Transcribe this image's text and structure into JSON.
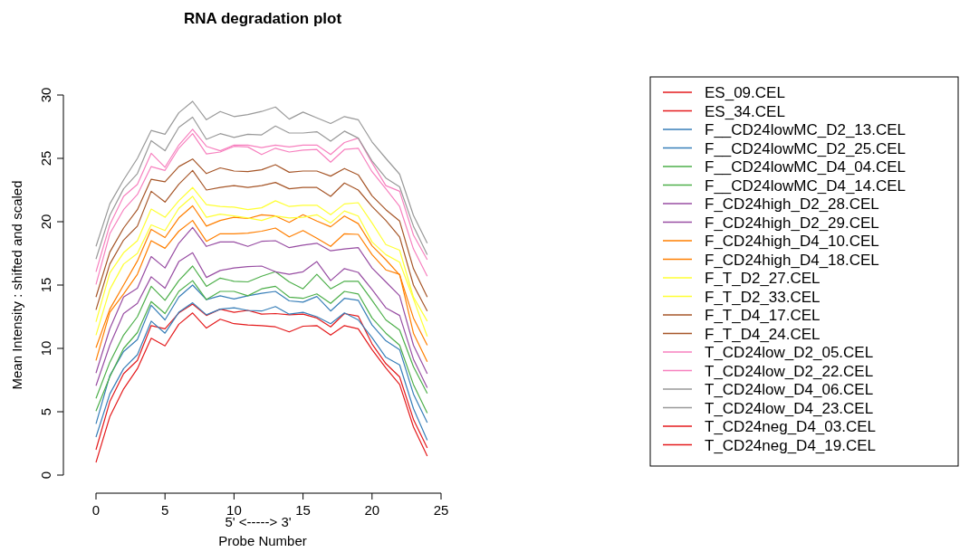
{
  "chart_data": {
    "type": "line",
    "title": "RNA degradation plot",
    "xlabel": "Probe Number",
    "ylabel": "Mean Intensity : shifted and scaled",
    "annotations": [
      "5' <-----> 3'"
    ],
    "x": [
      0,
      1,
      2,
      3,
      4,
      5,
      6,
      7,
      8,
      9,
      10,
      11,
      12,
      13,
      14,
      15,
      16,
      17,
      18,
      19,
      20,
      21,
      22,
      23,
      24
    ],
    "xlim": [
      0,
      25
    ],
    "xticks": [
      0,
      5,
      10,
      15,
      20,
      25
    ],
    "ylim": [
      0,
      30
    ],
    "yticks": [
      0,
      5,
      10,
      15,
      20,
      25,
      30
    ],
    "legend": "right",
    "grid": false,
    "marker": "none",
    "line_style": "solid",
    "series": [
      {
        "name": "ES_09.CEL",
        "color": "#e41a1c",
        "values": [
          1.0,
          4.6,
          6.8,
          8.4,
          10.8,
          10.2,
          11.9,
          12.8,
          11.6,
          12.3,
          11.95,
          11.85,
          11.8,
          11.7,
          11.3,
          11.75,
          11.8,
          11.05,
          11.8,
          11.55,
          9.9,
          8.45,
          7.15,
          3.8,
          1.5
        ]
      },
      {
        "name": "ES_34.CEL",
        "color": "#e41a1c",
        "values": [
          2.0,
          5.8,
          8.0,
          9.05,
          11.8,
          11.55,
          12.8,
          13.5,
          12.6,
          13.1,
          12.85,
          13.0,
          12.7,
          12.75,
          12.65,
          12.7,
          12.4,
          11.7,
          12.75,
          12.55,
          10.35,
          8.8,
          7.75,
          4.4,
          2.15
        ]
      },
      {
        "name": "F__CD24lowMC_D2_13.CEL",
        "color": "#377eb8",
        "values": [
          3.0,
          6.4,
          8.4,
          9.5,
          12.15,
          11.2,
          12.85,
          13.6,
          12.65,
          13.1,
          13.2,
          13.0,
          12.95,
          13.3,
          12.7,
          12.85,
          12.5,
          11.95,
          12.8,
          12.25,
          10.85,
          9.3,
          8.7,
          5.25,
          2.75
        ]
      },
      {
        "name": "F__CD24lowMC_D2_25.CEL",
        "color": "#377eb8",
        "values": [
          4.05,
          7.85,
          9.75,
          10.7,
          13.4,
          12.25,
          14.05,
          15.0,
          13.85,
          14.15,
          13.9,
          14.15,
          14.35,
          14.5,
          13.75,
          13.65,
          14.1,
          12.95,
          13.95,
          13.8,
          11.85,
          10.6,
          9.9,
          6.4,
          4.15
        ]
      },
      {
        "name": "F__CD24lowMC_D4_04.CEL",
        "color": "#4daf4a",
        "values": [
          5.05,
          7.75,
          10.0,
          11.25,
          13.7,
          12.75,
          14.5,
          15.35,
          13.85,
          14.5,
          14.5,
          14.15,
          14.7,
          14.9,
          14.05,
          13.95,
          14.3,
          13.55,
          14.5,
          14.3,
          12.4,
          11.2,
          10.25,
          7.15,
          4.9
        ]
      },
      {
        "name": "F__CD24lowMC_D4_14.CEL",
        "color": "#4daf4a",
        "values": [
          6.05,
          8.9,
          11.05,
          12.5,
          14.9,
          13.8,
          15.35,
          16.5,
          14.9,
          15.55,
          15.3,
          15.25,
          15.7,
          16.05,
          15.25,
          14.7,
          15.85,
          14.7,
          15.3,
          15.3,
          13.8,
          12.25,
          11.45,
          8.55,
          6.45
        ]
      },
      {
        "name": "F_CD24high_D2_28.CEL",
        "color": "#984ea3",
        "values": [
          7.05,
          10.25,
          12.75,
          13.55,
          15.65,
          14.75,
          16.85,
          17.55,
          15.6,
          16.15,
          16.35,
          16.45,
          16.5,
          16.05,
          15.85,
          16.05,
          16.85,
          15.35,
          16.3,
          16.0,
          14.65,
          13.2,
          12.6,
          9.15,
          6.9
        ]
      },
      {
        "name": "F_CD24high_D2_29.CEL",
        "color": "#984ea3",
        "values": [
          8.05,
          11.55,
          14.05,
          14.75,
          17.25,
          16.35,
          18.3,
          19.55,
          18.05,
          18.4,
          18.4,
          18.05,
          18.45,
          18.5,
          17.95,
          18.15,
          18.3,
          17.7,
          17.85,
          17.95,
          16.35,
          15.25,
          14.15,
          10.25,
          8.0
        ]
      },
      {
        "name": "F_CD24high_D4_10.CEL",
        "color": "#ff7f00",
        "values": [
          9.05,
          12.85,
          14.3,
          15.85,
          18.5,
          17.9,
          19.25,
          20.1,
          18.45,
          19.05,
          19.05,
          19.1,
          19.25,
          19.5,
          18.8,
          19.3,
          18.7,
          18.05,
          19.05,
          19.0,
          17.4,
          16.2,
          15.85,
          11.2,
          8.95
        ]
      },
      {
        "name": "F_CD24high_D4_18.CEL",
        "color": "#ff7f00",
        "values": [
          10.05,
          13.1,
          15.0,
          16.9,
          19.4,
          18.75,
          20.3,
          21.25,
          19.65,
          20.1,
          20.35,
          20.25,
          20.55,
          20.45,
          19.95,
          20.55,
          20.05,
          19.6,
          20.45,
          19.85,
          18.1,
          17.0,
          15.8,
          12.4,
          10.25
        ]
      },
      {
        "name": "F_T_D2_27.CEL",
        "color": "#ffff33",
        "values": [
          11.05,
          14.65,
          16.65,
          17.5,
          19.75,
          19.3,
          21.05,
          22.0,
          20.35,
          20.6,
          20.45,
          20.3,
          20.1,
          20.45,
          20.3,
          20.35,
          20.55,
          19.9,
          20.85,
          20.45,
          18.4,
          17.4,
          16.8,
          13.9,
          10.95
        ]
      },
      {
        "name": "F_T_D2_33.CEL",
        "color": "#ffff33",
        "values": [
          12.1,
          15.95,
          17.55,
          18.5,
          21.0,
          20.35,
          21.65,
          22.7,
          21.35,
          21.2,
          21.15,
          20.95,
          21.1,
          21.65,
          21.2,
          21.3,
          21.3,
          20.55,
          21.4,
          21.5,
          19.9,
          18.2,
          17.75,
          14.05,
          12.15
        ]
      },
      {
        "name": "F_T_D4_17.CEL",
        "color": "#a65628",
        "values": [
          13.05,
          16.65,
          18.55,
          19.65,
          22.4,
          21.55,
          22.95,
          24.05,
          22.5,
          22.7,
          22.85,
          22.7,
          22.85,
          23.1,
          22.6,
          22.7,
          22.7,
          22.0,
          23.05,
          22.5,
          21.2,
          20.1,
          18.8,
          15.0,
          12.95
        ]
      },
      {
        "name": "F_T_D4_24.CEL",
        "color": "#a65628",
        "values": [
          14.05,
          17.6,
          19.5,
          20.95,
          23.35,
          23.15,
          24.35,
          24.95,
          23.8,
          24.25,
          24.0,
          23.95,
          24.1,
          24.5,
          23.9,
          24.0,
          24.0,
          23.6,
          24.2,
          23.7,
          22.05,
          20.95,
          20.05,
          16.3,
          14.05
        ]
      },
      {
        "name": "T_CD24low_D2_05.CEL",
        "color": "#f781bf",
        "values": [
          15.05,
          19.05,
          20.95,
          22.15,
          24.35,
          24.05,
          25.8,
          26.95,
          25.35,
          25.5,
          25.95,
          25.9,
          25.3,
          25.8,
          25.5,
          25.65,
          25.7,
          24.7,
          25.7,
          25.8,
          23.95,
          22.6,
          21.2,
          17.85,
          15.7
        ]
      },
      {
        "name": "T_CD24low_D2_22.CEL",
        "color": "#f781bf",
        "values": [
          16.05,
          19.75,
          22.0,
          22.95,
          25.4,
          24.3,
          26.05,
          27.3,
          25.95,
          25.6,
          26.05,
          26.05,
          25.85,
          26.05,
          25.9,
          26.05,
          26.05,
          25.3,
          26.25,
          26.6,
          24.65,
          22.85,
          22.4,
          18.95,
          17.0
        ]
      },
      {
        "name": "T_CD24low_D4_06.CEL",
        "color": "#999999",
        "values": [
          17.05,
          20.5,
          22.6,
          23.8,
          26.4,
          25.6,
          27.45,
          28.25,
          26.5,
          26.95,
          26.65,
          26.9,
          26.85,
          27.55,
          27.0,
          27.0,
          27.1,
          26.35,
          27.15,
          26.6,
          24.8,
          23.45,
          22.75,
          19.65,
          17.4
        ]
      },
      {
        "name": "T_CD24low_D4_23.CEL",
        "color": "#999999",
        "values": [
          18.05,
          21.4,
          23.3,
          25.0,
          27.2,
          26.9,
          28.6,
          29.5,
          28.05,
          28.7,
          28.3,
          28.45,
          28.7,
          29.05,
          28.1,
          28.65,
          28.2,
          27.75,
          28.3,
          28.05,
          26.3,
          25.0,
          23.75,
          20.5,
          18.3
        ]
      },
      {
        "name": "T_CD24neg_D4_03.CEL",
        "color": "#e41a1c",
        "values": [
          null,
          null,
          null,
          null,
          null,
          null,
          null,
          null,
          null,
          null,
          null,
          null,
          null,
          null,
          null,
          null,
          null,
          null,
          null,
          null,
          null,
          null,
          null,
          null,
          null
        ]
      },
      {
        "name": "T_CD24neg_D4_19.CEL",
        "color": "#e41a1c",
        "values": [
          null,
          null,
          null,
          null,
          null,
          null,
          null,
          null,
          null,
          null,
          null,
          null,
          null,
          null,
          null,
          null,
          null,
          null,
          null,
          null,
          null,
          null,
          null,
          null,
          null
        ]
      }
    ]
  }
}
